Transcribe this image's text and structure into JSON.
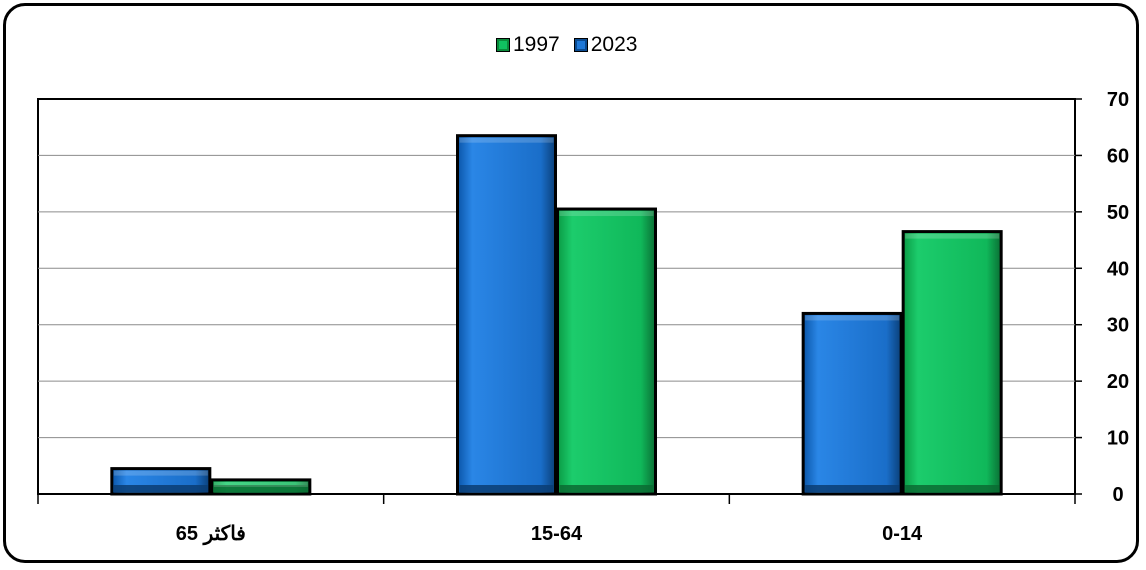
{
  "chart_data": {
    "type": "bar",
    "categories": [
      "65 فاكثر",
      "15-64",
      "0-14"
    ],
    "series": [
      {
        "name": "2023",
        "values": [
          4.5,
          63.5,
          32.0
        ],
        "color": "#1e78d8"
      },
      {
        "name": "1997",
        "values": [
          2.5,
          50.5,
          46.5
        ],
        "color": "#10c060"
      }
    ],
    "legend_order": [
      "1997",
      "2023"
    ],
    "legend_position": "top-center",
    "ylim": [
      0,
      70
    ],
    "yticks": [
      0,
      10,
      20,
      30,
      40,
      50,
      60,
      70
    ],
    "y_axis_side": "right",
    "grid": true,
    "title": "",
    "xlabel": "",
    "ylabel": ""
  },
  "legend": {
    "item1_label": "1997",
    "item2_label": "2023"
  }
}
